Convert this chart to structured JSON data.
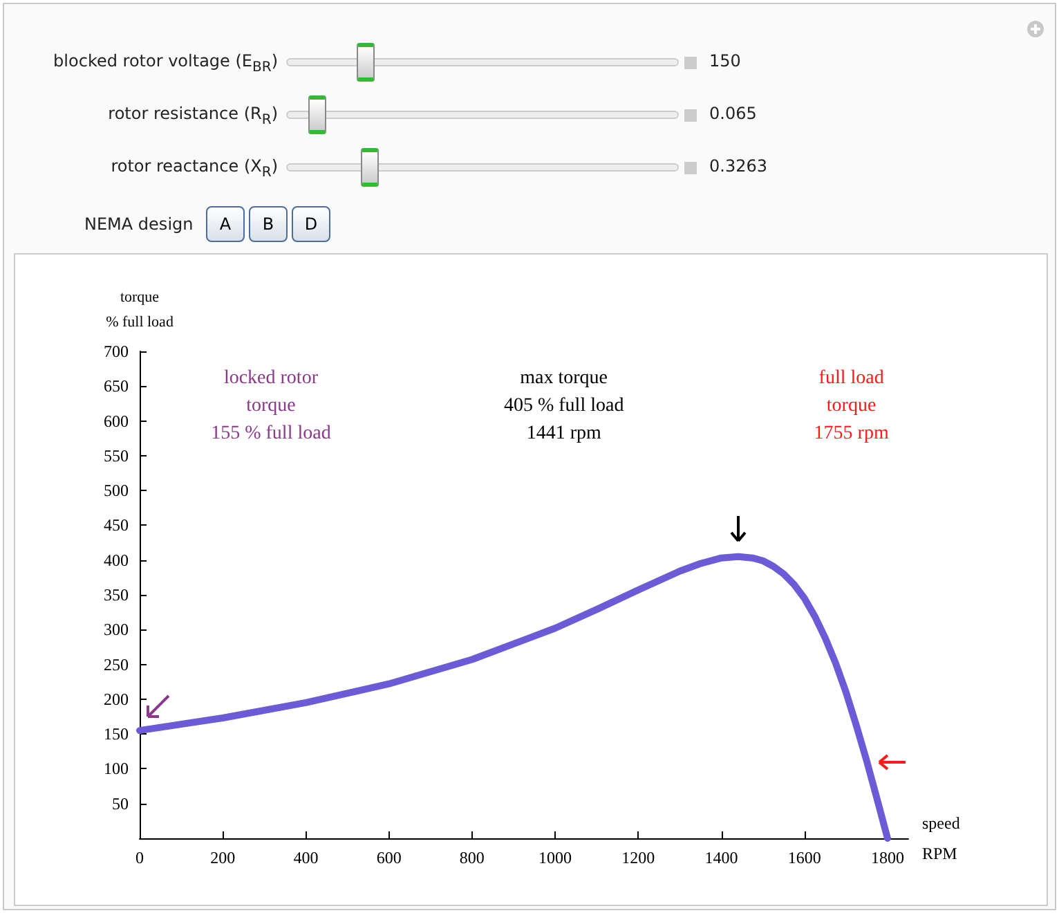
{
  "chart_data": {
    "type": "line",
    "xlabel": "speed\nRPM",
    "ylabel": "torque\n% full load",
    "annotations": [
      "blocked rotor voltage (E$_{BR}$)",
      "rotor resistance (R$_{R}$)",
      "rotor reactance (X$_{R}$)",
      "150",
      "0.065",
      "0.3263",
      "NEMA design",
      "A",
      "B",
      "D",
      "locked rotor\ntorque\n155 % full load",
      "max torque\n405 % full load\n1441 rpm",
      "full load\ntorque\n1755 rpm"
    ],
    "series": [
      {
        "color": "#6b5bd6",
        "x": [
          0,
          200,
          400,
          600,
          800,
          1000,
          1100,
          1200,
          1300,
          1350,
          1400,
          1441,
          1475,
          1500,
          1525,
          1550,
          1575,
          1600,
          1625,
          1650,
          1675,
          1700,
          1725,
          1750,
          1765,
          1780,
          1800
        ],
        "values": [
          155,
          173,
          195,
          222,
          257,
          302,
          329,
          357,
          384,
          395,
          403,
          405,
          403,
          399,
          391,
          380,
          365,
          345,
          319,
          288,
          252,
          210,
          162,
          111,
          78,
          45,
          0
        ]
      }
    ],
    "xlim": [
      0,
      1850
    ],
    "ylim": [
      0,
      700
    ],
    "xticks": [
      0,
      200,
      400,
      600,
      800,
      1000,
      1200,
      1400,
      1600,
      1800
    ],
    "yticks": [
      50,
      100,
      150,
      200,
      250,
      300,
      350,
      400,
      450,
      500,
      550,
      600,
      650,
      700
    ],
    "grid": false,
    "marker": "none",
    "line_style": "solid"
  }
}
